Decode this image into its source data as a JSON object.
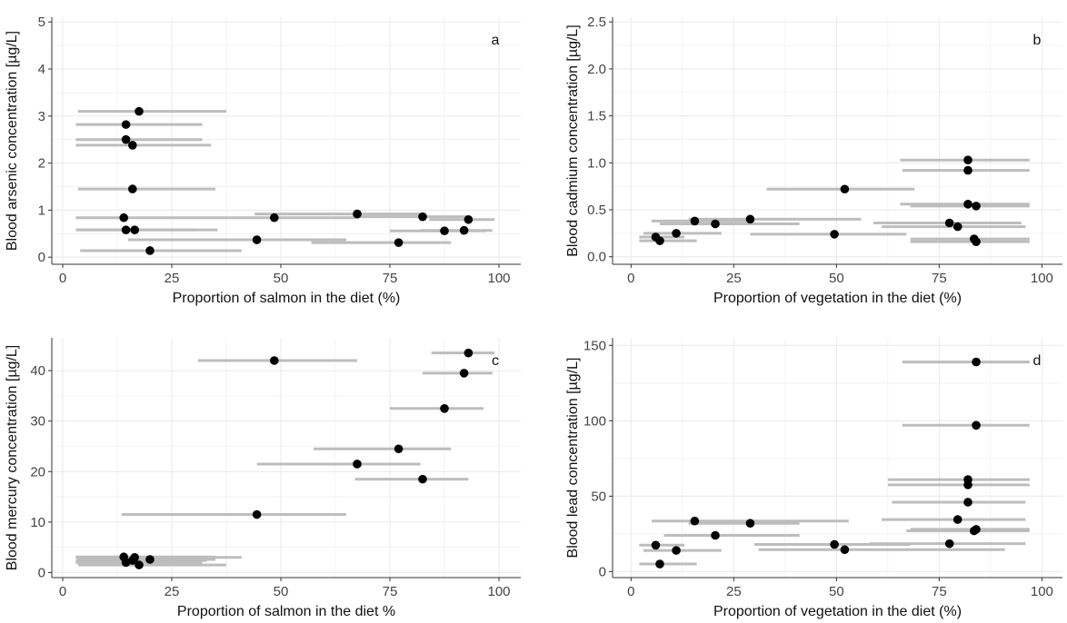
{
  "colors": {
    "point": "#000000",
    "interval": "#bdbdbd",
    "grid": "#ebebeb",
    "axis": "#333333"
  },
  "chart_data": [
    {
      "id": "a",
      "type": "scatter",
      "title": "",
      "panel_label": "a",
      "xlabel": "Proportion of salmon in the diet (%)",
      "ylabel": "Blood arsenic concentration [µg/L]",
      "xlim": [
        -2.5,
        105
      ],
      "ylim": [
        -0.15,
        5.1
      ],
      "x_ticks": [
        0,
        25,
        50,
        75,
        100
      ],
      "x_tick_labels": [
        "0",
        "25",
        "50",
        "75",
        "100"
      ],
      "y_ticks": [
        0,
        1,
        2,
        3,
        4,
        5
      ],
      "y_tick_labels": [
        "0",
        "1",
        "2",
        "3",
        "4",
        "5"
      ],
      "grid": true,
      "points": [
        {
          "x": 17.5,
          "y": 3.1,
          "xmin": 3.5,
          "xmax": 37.5
        },
        {
          "x": 14.5,
          "y": 2.82,
          "xmin": 3.0,
          "xmax": 32.0
        },
        {
          "x": 14.5,
          "y": 2.5,
          "xmin": 3.0,
          "xmax": 32.0
        },
        {
          "x": 16.0,
          "y": 2.38,
          "xmin": 3.0,
          "xmax": 34.0
        },
        {
          "x": 16.0,
          "y": 1.45,
          "xmin": 3.5,
          "xmax": 35.0
        },
        {
          "x": 14.0,
          "y": 0.84,
          "xmin": 3.0,
          "xmax": 31.0
        },
        {
          "x": 14.5,
          "y": 0.58,
          "xmin": 3.0,
          "xmax": 31.0
        },
        {
          "x": 16.5,
          "y": 0.58,
          "xmin": 3.5,
          "xmax": 35.5
        },
        {
          "x": 20.0,
          "y": 0.14,
          "xmin": 4.0,
          "xmax": 41.0
        },
        {
          "x": 44.5,
          "y": 0.37,
          "xmin": 15.0,
          "xmax": 65.0
        },
        {
          "x": 48.5,
          "y": 0.84,
          "xmin": 31.0,
          "xmax": 68.0
        },
        {
          "x": 67.5,
          "y": 0.92,
          "xmin": 44.0,
          "xmax": 82.0
        },
        {
          "x": 77.0,
          "y": 0.31,
          "xmin": 57.0,
          "xmax": 89.0
        },
        {
          "x": 82.5,
          "y": 0.86,
          "xmin": 66.5,
          "xmax": 93.0
        },
        {
          "x": 87.5,
          "y": 0.56,
          "xmin": 75.0,
          "xmax": 97.0
        },
        {
          "x": 92.0,
          "y": 0.57,
          "xmin": 82.0,
          "xmax": 98.5
        },
        {
          "x": 93.0,
          "y": 0.8,
          "xmin": 84.0,
          "xmax": 99.0
        }
      ]
    },
    {
      "id": "b",
      "type": "scatter",
      "title": "",
      "panel_label": "b",
      "xlabel": "Proportion of vegetation in the diet (%)",
      "ylabel": "Blood cadmium concentration [µg/L]",
      "xlim": [
        -4.5,
        105
      ],
      "ylim": [
        -0.08,
        2.55
      ],
      "x_ticks": [
        0,
        25,
        50,
        75,
        100
      ],
      "x_tick_labels": [
        "0",
        "25",
        "50",
        "75",
        "100"
      ],
      "y_ticks": [
        0,
        0.5,
        1,
        1.5,
        2,
        2.5
      ],
      "y_tick_labels": [
        "0.0",
        "0.5",
        "1.0",
        "1.5",
        "2.0",
        "2.5"
      ],
      "grid": true,
      "points": [
        {
          "x": 82.0,
          "y": 1.03,
          "xmin": 65.5,
          "xmax": 97.0
        },
        {
          "x": 82.0,
          "y": 0.92,
          "xmin": 66.0,
          "xmax": 97.0
        },
        {
          "x": 52.0,
          "y": 0.72,
          "xmin": 33.0,
          "xmax": 69.0
        },
        {
          "x": 82.0,
          "y": 0.56,
          "xmin": 65.5,
          "xmax": 97.0
        },
        {
          "x": 84.0,
          "y": 0.54,
          "xmin": 68.0,
          "xmax": 97.0
        },
        {
          "x": 29.0,
          "y": 0.4,
          "xmin": 14.0,
          "xmax": 56.0
        },
        {
          "x": 15.5,
          "y": 0.38,
          "xmin": 5.0,
          "xmax": 30.0
        },
        {
          "x": 20.5,
          "y": 0.35,
          "xmin": 7.0,
          "xmax": 41.0
        },
        {
          "x": 11.0,
          "y": 0.25,
          "xmin": 3.0,
          "xmax": 22.0
        },
        {
          "x": 49.5,
          "y": 0.24,
          "xmin": 29.0,
          "xmax": 67.0
        },
        {
          "x": 6.0,
          "y": 0.21,
          "xmin": 2.0,
          "xmax": 13.0
        },
        {
          "x": 7.0,
          "y": 0.17,
          "xmin": 2.0,
          "xmax": 16.0
        },
        {
          "x": 77.5,
          "y": 0.36,
          "xmin": 59.0,
          "xmax": 95.0
        },
        {
          "x": 79.5,
          "y": 0.32,
          "xmin": 61.0,
          "xmax": 96.0
        },
        {
          "x": 83.5,
          "y": 0.19,
          "xmin": 68.0,
          "xmax": 97.0
        },
        {
          "x": 84.0,
          "y": 0.16,
          "xmin": 68.0,
          "xmax": 97.0
        }
      ]
    },
    {
      "id": "c",
      "type": "scatter",
      "title": "",
      "panel_label": "c",
      "xlabel": "Proportion of salmon in the diet %",
      "ylabel": "Blood mercury concentration [µg/L]",
      "xlim": [
        -2.5,
        105
      ],
      "ylim": [
        -1,
        46.5
      ],
      "x_ticks": [
        0,
        25,
        50,
        75,
        100
      ],
      "x_tick_labels": [
        "0",
        "25",
        "50",
        "75",
        "100"
      ],
      "y_ticks": [
        0,
        10,
        20,
        30,
        40
      ],
      "y_tick_labels": [
        "0",
        "10",
        "20",
        "30",
        "40"
      ],
      "grid": true,
      "points": [
        {
          "x": 93.0,
          "y": 43.5,
          "xmin": 84.5,
          "xmax": 99.0
        },
        {
          "x": 48.5,
          "y": 42.0,
          "xmin": 31.0,
          "xmax": 67.5
        },
        {
          "x": 92.0,
          "y": 39.5,
          "xmin": 82.5,
          "xmax": 98.5
        },
        {
          "x": 87.5,
          "y": 32.5,
          "xmin": 75.0,
          "xmax": 96.5
        },
        {
          "x": 77.0,
          "y": 24.5,
          "xmin": 57.5,
          "xmax": 89.0
        },
        {
          "x": 67.5,
          "y": 21.5,
          "xmin": 44.5,
          "xmax": 82.0
        },
        {
          "x": 82.5,
          "y": 18.5,
          "xmin": 67.0,
          "xmax": 93.0
        },
        {
          "x": 44.5,
          "y": 11.5,
          "xmin": 13.5,
          "xmax": 65.0
        },
        {
          "x": 14.0,
          "y": 3.1,
          "xmin": 3.0,
          "xmax": 35.0
        },
        {
          "x": 16.5,
          "y": 3.0,
          "xmin": 3.0,
          "xmax": 41.0
        },
        {
          "x": 20.0,
          "y": 2.6,
          "xmin": 3.5,
          "xmax": 35.0
        },
        {
          "x": 16.0,
          "y": 2.4,
          "xmin": 3.0,
          "xmax": 33.0
        },
        {
          "x": 14.5,
          "y": 2.0,
          "xmin": 3.0,
          "xmax": 32.0
        },
        {
          "x": 17.5,
          "y": 1.5,
          "xmin": 3.5,
          "xmax": 37.5
        }
      ]
    },
    {
      "id": "d",
      "type": "scatter",
      "title": "",
      "panel_label": "d",
      "xlabel": "Proportion of vegetation in the diet (%)",
      "ylabel": "Blood lead concentration [µg/L]",
      "xlim": [
        -4.5,
        105
      ],
      "ylim": [
        -4,
        155
      ],
      "x_ticks": [
        0,
        25,
        50,
        75,
        100
      ],
      "x_tick_labels": [
        "0",
        "25",
        "50",
        "75",
        "100"
      ],
      "y_ticks": [
        0,
        50,
        100,
        150
      ],
      "y_tick_labels": [
        "0",
        "50",
        "100",
        "150"
      ],
      "grid": true,
      "points": [
        {
          "x": 84.0,
          "y": 139.0,
          "xmin": 66.0,
          "xmax": 97.0
        },
        {
          "x": 84.0,
          "y": 97.0,
          "xmin": 66.0,
          "xmax": 97.0
        },
        {
          "x": 82.0,
          "y": 61.0,
          "xmin": 62.5,
          "xmax": 97.0
        },
        {
          "x": 82.0,
          "y": 57.5,
          "xmin": 62.5,
          "xmax": 97.0
        },
        {
          "x": 82.0,
          "y": 46.0,
          "xmin": 63.5,
          "xmax": 96.0
        },
        {
          "x": 79.5,
          "y": 34.5,
          "xmin": 61.0,
          "xmax": 96.0
        },
        {
          "x": 15.5,
          "y": 33.5,
          "xmin": 5.0,
          "xmax": 53.0
        },
        {
          "x": 29.0,
          "y": 32.0,
          "xmin": 14.0,
          "xmax": 41.0
        },
        {
          "x": 84.0,
          "y": 28.0,
          "xmin": 68.0,
          "xmax": 97.0
        },
        {
          "x": 83.5,
          "y": 27.0,
          "xmin": 67.0,
          "xmax": 97.0
        },
        {
          "x": 20.5,
          "y": 24.0,
          "xmin": 8.0,
          "xmax": 41.0
        },
        {
          "x": 77.5,
          "y": 18.5,
          "xmin": 58.0,
          "xmax": 96.0
        },
        {
          "x": 6.0,
          "y": 17.5,
          "xmin": 2.0,
          "xmax": 13.0
        },
        {
          "x": 49.5,
          "y": 18.0,
          "xmin": 30.0,
          "xmax": 68.0
        },
        {
          "x": 11.0,
          "y": 14.0,
          "xmin": 3.0,
          "xmax": 22.0
        },
        {
          "x": 52.0,
          "y": 14.5,
          "xmin": 31.0,
          "xmax": 91.0
        },
        {
          "x": 7.0,
          "y": 5.0,
          "xmin": 2.0,
          "xmax": 16.0
        }
      ]
    }
  ]
}
